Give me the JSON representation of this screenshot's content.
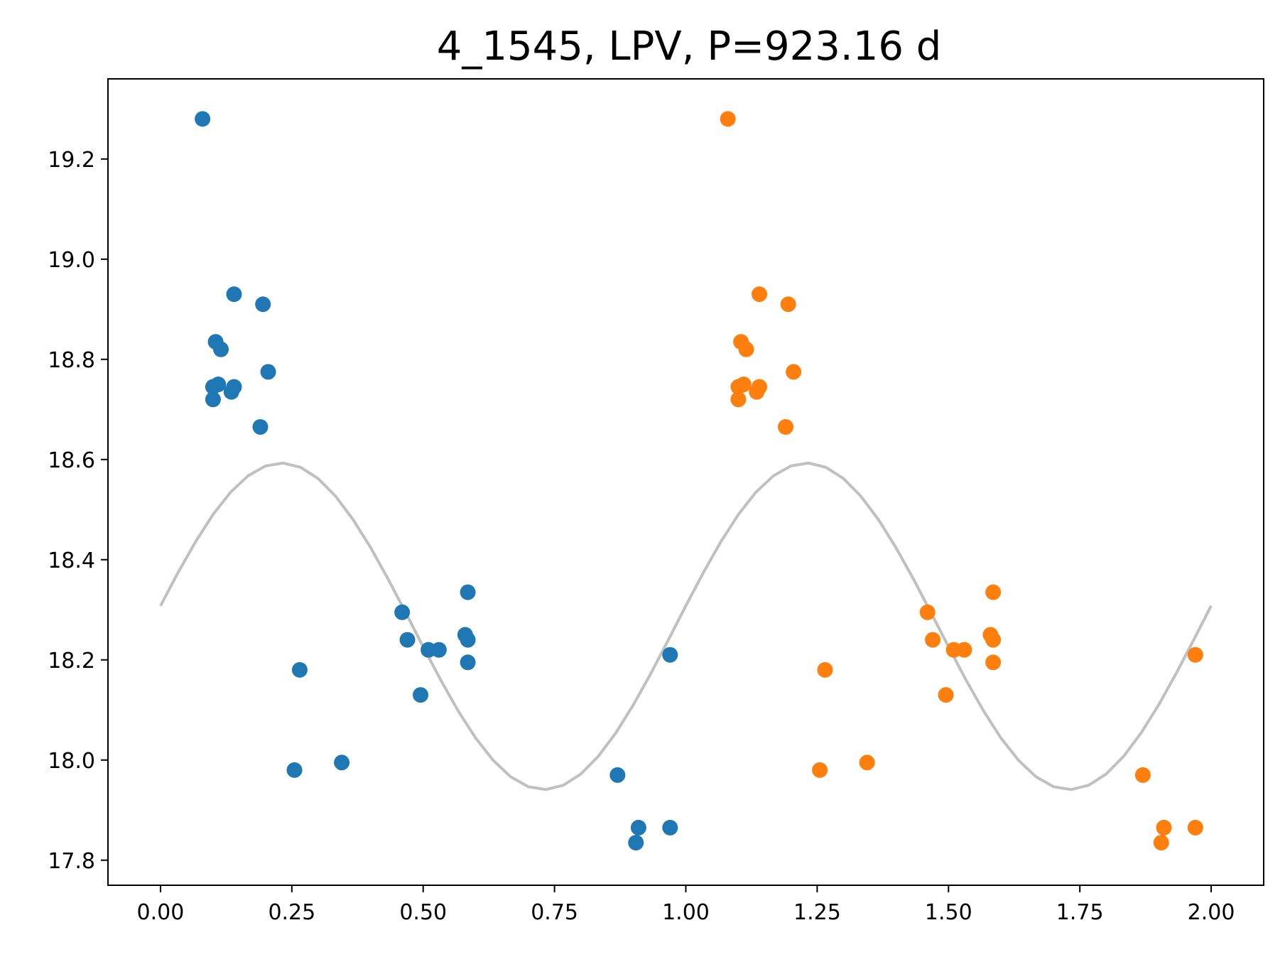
{
  "chart_data": {
    "type": "scatter",
    "title": "4_1545, LPV, P=923.16 d",
    "xlabel": "",
    "ylabel": "",
    "xlim": [
      -0.1,
      2.1
    ],
    "ylim": [
      19.36,
      17.75
    ],
    "y_inverted": true,
    "grid": false,
    "x_ticks": [
      "0.00",
      "0.25",
      "0.50",
      "0.75",
      "1.00",
      "1.25",
      "1.50",
      "1.75",
      "2.00"
    ],
    "x_tick_values": [
      0,
      0.25,
      0.5,
      0.75,
      1.0,
      1.25,
      1.5,
      1.75,
      2.0
    ],
    "y_ticks": [
      "17.8",
      "18.0",
      "18.2",
      "18.4",
      "18.6",
      "18.8",
      "19.0",
      "19.2"
    ],
    "y_tick_values": [
      17.8,
      18.0,
      18.2,
      18.4,
      18.6,
      18.8,
      19.0,
      19.2
    ],
    "series": [
      {
        "color": "#1f77b4",
        "kind": "scatter",
        "points": [
          [
            0.08,
            19.28
          ],
          [
            0.1,
            18.72
          ],
          [
            0.1,
            18.745
          ],
          [
            0.105,
            18.835
          ],
          [
            0.11,
            18.75
          ],
          [
            0.115,
            18.82
          ],
          [
            0.135,
            18.735
          ],
          [
            0.14,
            18.745
          ],
          [
            0.14,
            18.93
          ],
          [
            0.19,
            18.665
          ],
          [
            0.195,
            18.91
          ],
          [
            0.205,
            18.775
          ],
          [
            0.255,
            17.98
          ],
          [
            0.265,
            18.18
          ],
          [
            0.345,
            17.995
          ],
          [
            0.46,
            18.295
          ],
          [
            0.47,
            18.24
          ],
          [
            0.495,
            18.13
          ],
          [
            0.51,
            18.22
          ],
          [
            0.53,
            18.22
          ],
          [
            0.58,
            18.25
          ],
          [
            0.585,
            18.195
          ],
          [
            0.585,
            18.24
          ],
          [
            0.585,
            18.335
          ],
          [
            0.87,
            17.97
          ],
          [
            0.905,
            17.835
          ],
          [
            0.91,
            17.865
          ],
          [
            0.97,
            17.865
          ],
          [
            0.97,
            18.21
          ]
        ]
      },
      {
        "color": "#ff7f0e",
        "kind": "scatter",
        "points": [
          [
            1.08,
            19.28
          ],
          [
            1.1,
            18.72
          ],
          [
            1.1,
            18.745
          ],
          [
            1.105,
            18.835
          ],
          [
            1.11,
            18.75
          ],
          [
            1.115,
            18.82
          ],
          [
            1.135,
            18.735
          ],
          [
            1.14,
            18.745
          ],
          [
            1.14,
            18.93
          ],
          [
            1.19,
            18.665
          ],
          [
            1.195,
            18.91
          ],
          [
            1.205,
            18.775
          ],
          [
            1.255,
            17.98
          ],
          [
            1.265,
            18.18
          ],
          [
            1.345,
            17.995
          ],
          [
            1.46,
            18.295
          ],
          [
            1.47,
            18.24
          ],
          [
            1.495,
            18.13
          ],
          [
            1.51,
            18.22
          ],
          [
            1.53,
            18.22
          ],
          [
            1.58,
            18.25
          ],
          [
            1.585,
            18.195
          ],
          [
            1.585,
            18.24
          ],
          [
            1.585,
            18.335
          ],
          [
            1.87,
            17.97
          ],
          [
            1.905,
            17.835
          ],
          [
            1.91,
            17.865
          ],
          [
            1.97,
            17.865
          ],
          [
            1.97,
            18.21
          ]
        ]
      },
      {
        "color": "#c0c0c0",
        "kind": "line",
        "model": {
          "mean": 18.267,
          "amplitude": 0.326,
          "phase_of_max_brightness": 0.73,
          "x_range": [
            0.0,
            2.0
          ]
        }
      }
    ]
  }
}
